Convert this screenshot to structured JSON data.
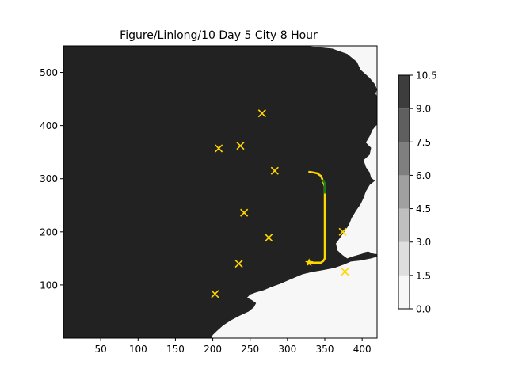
{
  "chart_data": {
    "type": "heatmap",
    "title": "Figure/Linlong/10 Day 5 City 8 Hour",
    "xlabel": "",
    "ylabel": "",
    "xlim": [
      0,
      420
    ],
    "ylim": [
      0,
      550
    ],
    "xticks": [
      50,
      100,
      150,
      200,
      250,
      300,
      350,
      400
    ],
    "yticks": [
      100,
      200,
      300,
      400,
      500
    ],
    "colorbar": {
      "levels": [
        0.0,
        1.5,
        3.0,
        4.5,
        6.0,
        7.5,
        9.0,
        10.5
      ],
      "tick_labels": [
        "0.0",
        "1.5",
        "3.0",
        "4.5",
        "6.0",
        "7.5",
        "9.0",
        "10.5"
      ],
      "colors": [
        "#f7f7f7",
        "#dedede",
        "#bfbfbf",
        "#a0a0a0",
        "#7f7f7f",
        "#5f5f5f",
        "#3d3d3d",
        "#222222"
      ]
    },
    "land_value_color": "#222222",
    "sea_value_color": "#f7f7f7",
    "coastline": [
      [
        0,
        550
      ],
      [
        325,
        550
      ],
      [
        360,
        545
      ],
      [
        380,
        535
      ],
      [
        393,
        520
      ],
      [
        398,
        505
      ],
      [
        410,
        490
      ],
      [
        417,
        478
      ],
      [
        420,
        468
      ],
      [
        418,
        460
      ],
      [
        423,
        448
      ],
      [
        430,
        435
      ],
      [
        432,
        420
      ],
      [
        422,
        412
      ],
      [
        420,
        402
      ],
      [
        414,
        392
      ],
      [
        410,
        380
      ],
      [
        405,
        368
      ],
      [
        412,
        358
      ],
      [
        410,
        345
      ],
      [
        402,
        335
      ],
      [
        405,
        322
      ],
      [
        410,
        312
      ],
      [
        412,
        302
      ],
      [
        417,
        296
      ],
      [
        410,
        288
      ],
      [
        405,
        276
      ],
      [
        402,
        264
      ],
      [
        398,
        252
      ],
      [
        392,
        240
      ],
      [
        386,
        226
      ],
      [
        382,
        212
      ],
      [
        376,
        200
      ],
      [
        370,
        188
      ],
      [
        365,
        178
      ],
      [
        367,
        165
      ],
      [
        374,
        156
      ],
      [
        380,
        150
      ],
      [
        388,
        154
      ],
      [
        398,
        158
      ],
      [
        410,
        160
      ],
      [
        420,
        158
      ],
      [
        422,
        154
      ],
      [
        412,
        150
      ],
      [
        398,
        146
      ],
      [
        385,
        144
      ],
      [
        375,
        138
      ],
      [
        363,
        132
      ],
      [
        348,
        128
      ],
      [
        332,
        124
      ],
      [
        320,
        120
      ],
      [
        310,
        114
      ],
      [
        300,
        108
      ],
      [
        290,
        102
      ],
      [
        278,
        96
      ],
      [
        268,
        90
      ],
      [
        258,
        86
      ],
      [
        250,
        82
      ],
      [
        246,
        76
      ],
      [
        252,
        72
      ],
      [
        258,
        66
      ],
      [
        255,
        58
      ],
      [
        248,
        50
      ],
      [
        236,
        42
      ],
      [
        225,
        34
      ],
      [
        214,
        24
      ],
      [
        206,
        14
      ],
      [
        200,
        6
      ],
      [
        198,
        0
      ],
      [
        0,
        0
      ]
    ],
    "islands": [
      [
        [
          398,
          160
        ],
        [
          408,
          163
        ],
        [
          415,
          159
        ],
        [
          406,
          156
        ]
      ],
      [
        [
          410,
          405
        ],
        [
          418,
          410
        ],
        [
          422,
          402
        ],
        [
          414,
          398
        ]
      ]
    ],
    "cities": [
      {
        "x": 266,
        "y": 423
      },
      {
        "x": 208,
        "y": 357
      },
      {
        "x": 237,
        "y": 362
      },
      {
        "x": 283,
        "y": 315
      },
      {
        "x": 242,
        "y": 236
      },
      {
        "x": 275,
        "y": 189
      },
      {
        "x": 235,
        "y": 140
      },
      {
        "x": 203,
        "y": 83
      },
      {
        "x": 374,
        "y": 200
      },
      {
        "x": 377,
        "y": 125
      }
    ],
    "start": {
      "x": 329,
      "y": 142
    },
    "route_yellow": [
      [
        329,
        142
      ],
      [
        338,
        142
      ],
      [
        345,
        142
      ],
      [
        348,
        145
      ],
      [
        350,
        150
      ],
      [
        350,
        200
      ],
      [
        350,
        250
      ],
      [
        350,
        285
      ],
      [
        347,
        298
      ],
      [
        345,
        305
      ],
      [
        340,
        310
      ],
      [
        334,
        312
      ],
      [
        328,
        313
      ]
    ],
    "route_green": [
      [
        347,
        298
      ],
      [
        350,
        292
      ],
      [
        350,
        272
      ]
    ],
    "cmap_marker_color": "#ffd700",
    "route_yellow_color": "#ffd700",
    "route_green_color": "#1a7a1a"
  }
}
